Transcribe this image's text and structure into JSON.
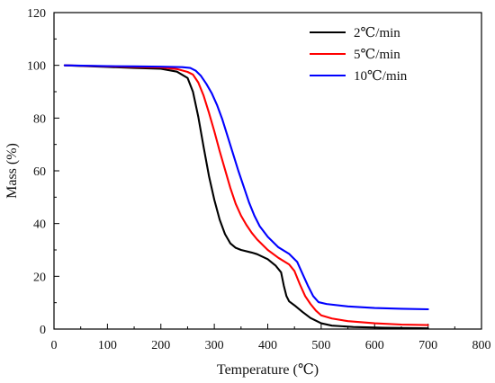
{
  "chart_data": {
    "type": "line",
    "title": "",
    "xlabel": "Temperature (℃)",
    "ylabel": "Mass (%)",
    "xlim": [
      0,
      800
    ],
    "ylim": [
      0,
      120
    ],
    "xticks": [
      0,
      100,
      200,
      300,
      400,
      500,
      600,
      700,
      800
    ],
    "yticks": [
      0,
      20,
      40,
      60,
      80,
      100,
      120
    ],
    "grid": false,
    "legend_position": "top-right",
    "series": [
      {
        "name": "2℃/min",
        "color": "#000000",
        "points": [
          [
            20,
            100
          ],
          [
            100,
            99.4
          ],
          [
            150,
            99.0
          ],
          [
            200,
            98.7
          ],
          [
            230,
            97.6
          ],
          [
            250,
            95.2
          ],
          [
            260,
            90.0
          ],
          [
            270,
            80.5
          ],
          [
            280,
            69.0
          ],
          [
            290,
            58.0
          ],
          [
            300,
            49.0
          ],
          [
            310,
            41.5
          ],
          [
            320,
            36.0
          ],
          [
            330,
            32.5
          ],
          [
            340,
            30.8
          ],
          [
            350,
            30.0
          ],
          [
            370,
            29.0
          ],
          [
            380,
            28.4
          ],
          [
            400,
            26.5
          ],
          [
            415,
            24.0
          ],
          [
            425,
            21.5
          ],
          [
            430,
            16.5
          ],
          [
            435,
            12.5
          ],
          [
            440,
            10.5
          ],
          [
            450,
            9.0
          ],
          [
            465,
            6.5
          ],
          [
            480,
            4.2
          ],
          [
            500,
            2.2
          ],
          [
            520,
            1.3
          ],
          [
            560,
            0.8
          ],
          [
            620,
            0.5
          ],
          [
            700,
            0.3
          ]
        ]
      },
      {
        "name": "5℃/min",
        "color": "#ff0000",
        "points": [
          [
            20,
            100
          ],
          [
            100,
            99.6
          ],
          [
            150,
            99.4
          ],
          [
            200,
            99.2
          ],
          [
            230,
            98.6
          ],
          [
            250,
            97.5
          ],
          [
            260,
            96.5
          ],
          [
            270,
            93.5
          ],
          [
            280,
            88.5
          ],
          [
            290,
            82.0
          ],
          [
            300,
            75.0
          ],
          [
            310,
            67.5
          ],
          [
            320,
            60.5
          ],
          [
            330,
            53.5
          ],
          [
            340,
            47.5
          ],
          [
            350,
            43.0
          ],
          [
            360,
            39.5
          ],
          [
            370,
            36.5
          ],
          [
            380,
            34.0
          ],
          [
            400,
            30.0
          ],
          [
            420,
            27.0
          ],
          [
            440,
            24.5
          ],
          [
            450,
            22.0
          ],
          [
            460,
            17.0
          ],
          [
            470,
            12.5
          ],
          [
            480,
            9.5
          ],
          [
            490,
            7.0
          ],
          [
            500,
            5.2
          ],
          [
            520,
            4.0
          ],
          [
            550,
            3.0
          ],
          [
            600,
            2.2
          ],
          [
            650,
            1.7
          ],
          [
            700,
            1.5
          ]
        ]
      },
      {
        "name": "10℃/min",
        "color": "#0000ff",
        "points": [
          [
            20,
            100
          ],
          [
            100,
            99.7
          ],
          [
            150,
            99.6
          ],
          [
            200,
            99.5
          ],
          [
            240,
            99.3
          ],
          [
            255,
            99.0
          ],
          [
            265,
            98.0
          ],
          [
            275,
            96.0
          ],
          [
            285,
            93.0
          ],
          [
            295,
            89.5
          ],
          [
            305,
            85.0
          ],
          [
            315,
            79.5
          ],
          [
            325,
            73.0
          ],
          [
            335,
            66.5
          ],
          [
            345,
            60.0
          ],
          [
            355,
            54.0
          ],
          [
            365,
            48.0
          ],
          [
            375,
            43.0
          ],
          [
            385,
            39.0
          ],
          [
            400,
            35.0
          ],
          [
            420,
            31.0
          ],
          [
            440,
            28.5
          ],
          [
            455,
            25.5
          ],
          [
            465,
            21.0
          ],
          [
            475,
            16.5
          ],
          [
            485,
            12.5
          ],
          [
            495,
            10.2
          ],
          [
            510,
            9.5
          ],
          [
            550,
            8.6
          ],
          [
            600,
            8.0
          ],
          [
            650,
            7.7
          ],
          [
            700,
            7.5
          ]
        ]
      }
    ]
  }
}
